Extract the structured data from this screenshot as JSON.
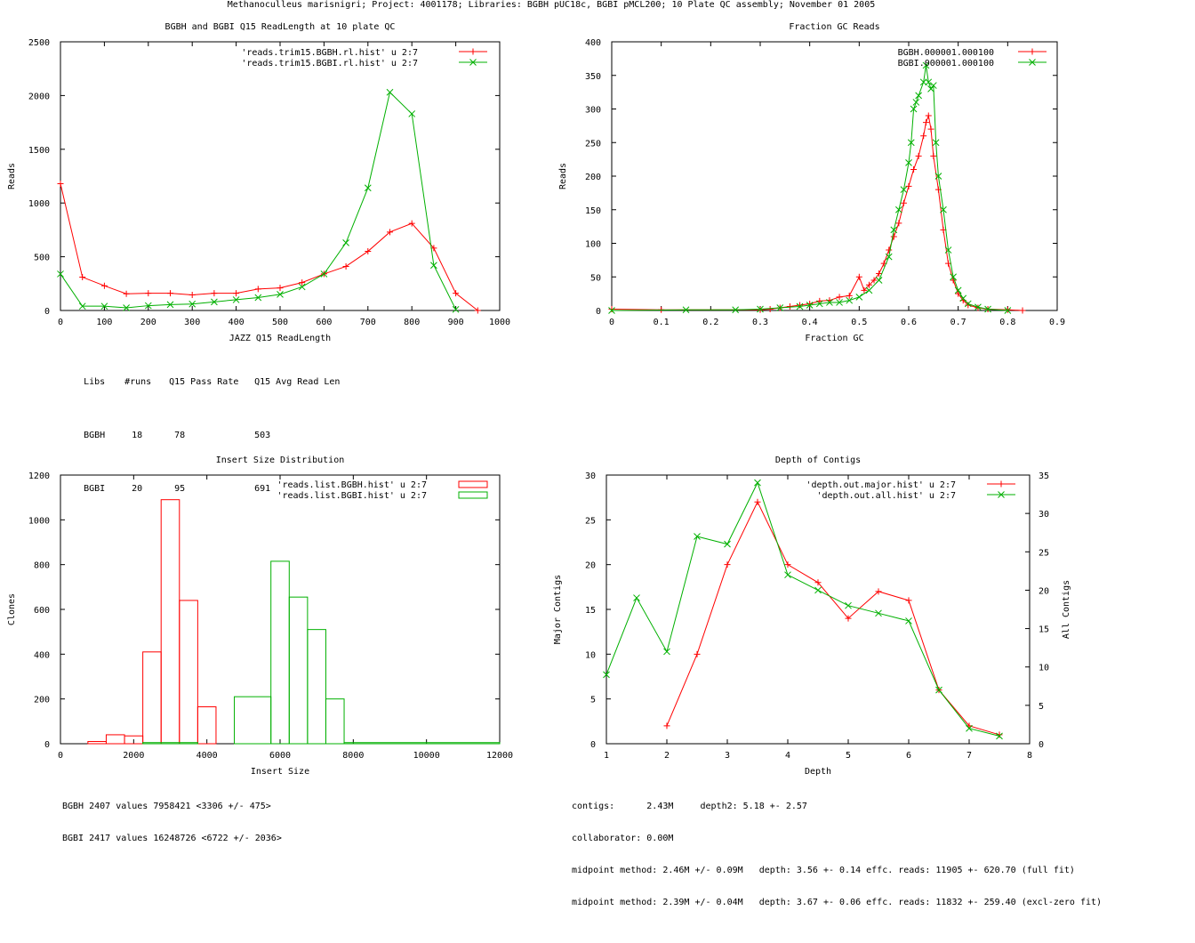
{
  "page_title": "Methanoculleus marisnigri; Project: 4001178; Libraries: BGBH pUC18c, BGBI pMCL200; 10 Plate QC assembly; November 01 2005",
  "colors": {
    "red": "#ff0000",
    "green": "#00b000",
    "axis": "#000000"
  },
  "readlength_stats": {
    "header": [
      "Libs",
      "#runs",
      "Q15 Pass Rate",
      "Q15 Avg Read Len"
    ],
    "rows": [
      [
        "BGBH",
        "18",
        "78",
        "503"
      ],
      [
        "BGBI",
        "20",
        "95",
        "691"
      ]
    ]
  },
  "insert_stats": [
    "BGBH 2407 values 7958421 <3306 +/- 475>",
    "BGBI 2417 values 16248726 <6722 +/- 2036>"
  ],
  "depth_stats": [
    "contigs:      2.43M     depth2: 5.18 +- 2.57",
    "collaborator: 0.00M",
    "midpoint method: 2.46M +/- 0.09M   depth: 3.56 +- 0.14 effc. reads: 11905 +- 620.70 (full fit)",
    "midpoint method: 2.39M +/- 0.04M   depth: 3.67 +- 0.06 effc. reads: 11832 +- 259.40 (excl-zero fit)"
  ],
  "chart_data": [
    {
      "id": "readlength",
      "type": "line",
      "title": "BGBH and BGBI Q15 ReadLength at 10 plate QC",
      "xlabel": "JAZZ Q15 ReadLength",
      "ylabel": "Reads",
      "xlim": [
        0,
        1000
      ],
      "ylim": [
        0,
        2500
      ],
      "xticks": [
        0,
        100,
        200,
        300,
        400,
        500,
        600,
        700,
        800,
        900,
        1000
      ],
      "yticks": [
        0,
        500,
        1000,
        1500,
        2000,
        2500
      ],
      "legend": "top-right",
      "series": [
        {
          "name": "'reads.trim15.BGBH.rl.hist' u 2:7",
          "color": "red",
          "marker": "plus",
          "x": [
            0,
            50,
            100,
            150,
            200,
            250,
            300,
            350,
            400,
            450,
            500,
            550,
            600,
            650,
            700,
            750,
            800,
            850,
            900,
            950
          ],
          "y": [
            1180,
            310,
            230,
            155,
            160,
            160,
            145,
            160,
            160,
            200,
            210,
            260,
            340,
            410,
            550,
            730,
            810,
            580,
            160,
            0
          ]
        },
        {
          "name": "'reads.trim15.BGBI.rl.hist' u 2:7",
          "color": "green",
          "marker": "x",
          "x": [
            0,
            50,
            100,
            150,
            200,
            250,
            300,
            350,
            400,
            450,
            500,
            550,
            600,
            650,
            700,
            750,
            800,
            850,
            900
          ],
          "y": [
            340,
            40,
            40,
            25,
            45,
            55,
            60,
            80,
            100,
            120,
            150,
            220,
            340,
            630,
            1140,
            2030,
            1830,
            420,
            10
          ]
        }
      ]
    },
    {
      "id": "gc",
      "type": "line",
      "title": "Fraction GC Reads",
      "xlabel": "Fraction GC",
      "ylabel": "Reads",
      "xlim": [
        0,
        0.9
      ],
      "ylim": [
        0,
        400
      ],
      "xticks": [
        0,
        0.1,
        0.2,
        0.3,
        0.4,
        0.5,
        0.6,
        0.7,
        0.8,
        0.9
      ],
      "yticks": [
        0,
        50,
        100,
        150,
        200,
        250,
        300,
        350,
        400
      ],
      "legend": "top-right",
      "series": [
        {
          "name": "BGBH.000001.000100",
          "color": "red",
          "marker": "plus",
          "x": [
            0.0,
            0.1,
            0.3,
            0.32,
            0.34,
            0.36,
            0.38,
            0.4,
            0.42,
            0.44,
            0.46,
            0.48,
            0.5,
            0.51,
            0.52,
            0.53,
            0.54,
            0.55,
            0.56,
            0.57,
            0.58,
            0.59,
            0.6,
            0.61,
            0.62,
            0.63,
            0.635,
            0.64,
            0.645,
            0.65,
            0.66,
            0.67,
            0.68,
            0.69,
            0.7,
            0.71,
            0.72,
            0.74,
            0.76,
            0.8,
            0.83
          ],
          "y": [
            2,
            1,
            1,
            2,
            4,
            6,
            8,
            10,
            14,
            15,
            20,
            22,
            50,
            30,
            38,
            45,
            55,
            70,
            90,
            110,
            130,
            160,
            185,
            210,
            230,
            260,
            280,
            290,
            270,
            230,
            180,
            120,
            70,
            45,
            25,
            15,
            8,
            4,
            2,
            1,
            0
          ]
        },
        {
          "name": "BGBI.000001.000100",
          "color": "green",
          "marker": "x",
          "x": [
            0.0,
            0.15,
            0.25,
            0.3,
            0.34,
            0.38,
            0.4,
            0.42,
            0.44,
            0.46,
            0.48,
            0.5,
            0.52,
            0.54,
            0.56,
            0.57,
            0.58,
            0.59,
            0.6,
            0.605,
            0.61,
            0.615,
            0.62,
            0.63,
            0.635,
            0.64,
            0.645,
            0.65,
            0.655,
            0.66,
            0.67,
            0.68,
            0.69,
            0.7,
            0.71,
            0.72,
            0.74,
            0.76,
            0.8
          ],
          "y": [
            0,
            1,
            1,
            2,
            4,
            6,
            8,
            10,
            12,
            12,
            15,
            20,
            30,
            45,
            80,
            120,
            150,
            180,
            220,
            250,
            300,
            310,
            320,
            340,
            365,
            340,
            330,
            335,
            250,
            200,
            150,
            90,
            50,
            30,
            18,
            10,
            5,
            2,
            0
          ]
        }
      ]
    },
    {
      "id": "insert",
      "type": "bar",
      "title": "Insert Size Distribution",
      "xlabel": "Insert Size",
      "ylabel": "Clones",
      "xlim": [
        0,
        12000
      ],
      "ylim": [
        0,
        1200
      ],
      "xticks": [
        0,
        2000,
        4000,
        6000,
        8000,
        10000,
        12000
      ],
      "yticks": [
        0,
        200,
        400,
        600,
        800,
        1000,
        1200
      ],
      "legend": "top-right",
      "series": [
        {
          "name": "'reads.list.BGBH.hist' u 2:7",
          "color": "red",
          "bins": [
            [
              750,
              1250,
              10
            ],
            [
              1250,
              1750,
              40
            ],
            [
              1750,
              2250,
              35
            ],
            [
              2250,
              2750,
              410
            ],
            [
              2750,
              3250,
              1090
            ],
            [
              3250,
              3750,
              640
            ],
            [
              3750,
              4250,
              165
            ]
          ]
        },
        {
          "name": "'reads.list.BGBI.hist' u 2:7",
          "color": "green",
          "bins": [
            [
              2250,
              3750,
              5
            ],
            [
              4750,
              5750,
              210
            ],
            [
              5750,
              6250,
              815
            ],
            [
              6250,
              6750,
              655
            ],
            [
              6750,
              7250,
              510
            ],
            [
              7250,
              7750,
              200
            ],
            [
              7750,
              12000,
              5
            ]
          ]
        }
      ]
    },
    {
      "id": "depth",
      "type": "line",
      "title": "Depth of Contigs",
      "xlabel": "Depth",
      "ylabel": "Major Contigs",
      "y2label": "All Contigs",
      "xlim": [
        1,
        8
      ],
      "ylim": [
        0,
        30
      ],
      "y2lim": [
        0,
        35
      ],
      "xticks": [
        1,
        2,
        3,
        4,
        5,
        6,
        7,
        8
      ],
      "yticks": [
        0,
        5,
        10,
        15,
        20,
        25,
        30
      ],
      "y2ticks": [
        0,
        5,
        10,
        15,
        20,
        25,
        30,
        35
      ],
      "legend": "top-right",
      "series": [
        {
          "name": "'depth.out.major.hist' u 2:7",
          "color": "red",
          "marker": "plus",
          "axis": "y",
          "x": [
            2,
            2.5,
            3,
            3.5,
            4,
            4.5,
            5,
            5.5,
            6,
            6.5,
            7,
            7.5
          ],
          "y": [
            2,
            10,
            20,
            27,
            20,
            18,
            14,
            17,
            16,
            6,
            2,
            1
          ]
        },
        {
          "name": "'depth.out.all.hist' u 2:7",
          "color": "green",
          "marker": "x",
          "axis": "y2",
          "x": [
            1,
            1.5,
            2,
            2.5,
            3,
            3.5,
            4,
            4.5,
            5,
            5.5,
            6,
            6.5,
            7,
            7.5
          ],
          "y": [
            9,
            19,
            12,
            27,
            26,
            34,
            22,
            20,
            18,
            17,
            16,
            7,
            2,
            1
          ]
        }
      ]
    }
  ]
}
